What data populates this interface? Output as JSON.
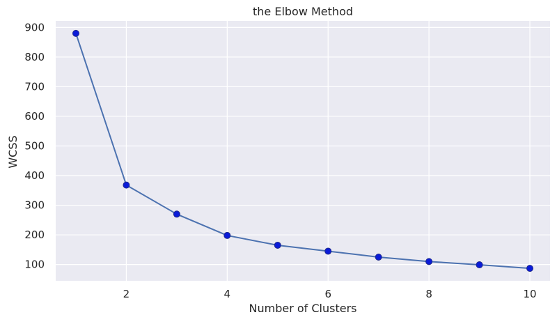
{
  "chart_data": {
    "type": "line",
    "title": "the Elbow Method",
    "xlabel": "Number of Clusters",
    "ylabel": "WCSS",
    "x": [
      1,
      2,
      3,
      4,
      5,
      6,
      7,
      8,
      9,
      10
    ],
    "series": [
      {
        "values": [
          880,
          368,
          270,
          198,
          165,
          145,
          125,
          110,
          99,
          87
        ]
      }
    ],
    "xticks": [
      2,
      4,
      6,
      8,
      10
    ],
    "yticks": [
      100,
      200,
      300,
      400,
      500,
      600,
      700,
      800,
      900
    ],
    "xlim": [
      0.6,
      10.4
    ],
    "ylim": [
      45,
      922
    ],
    "grid": true,
    "colors": {
      "background": "#eaeaf2",
      "grid": "#ffffff",
      "line": "#4c72b0",
      "marker_fill": "#0a1bd8",
      "marker_edge": "#1f2a8c"
    }
  }
}
